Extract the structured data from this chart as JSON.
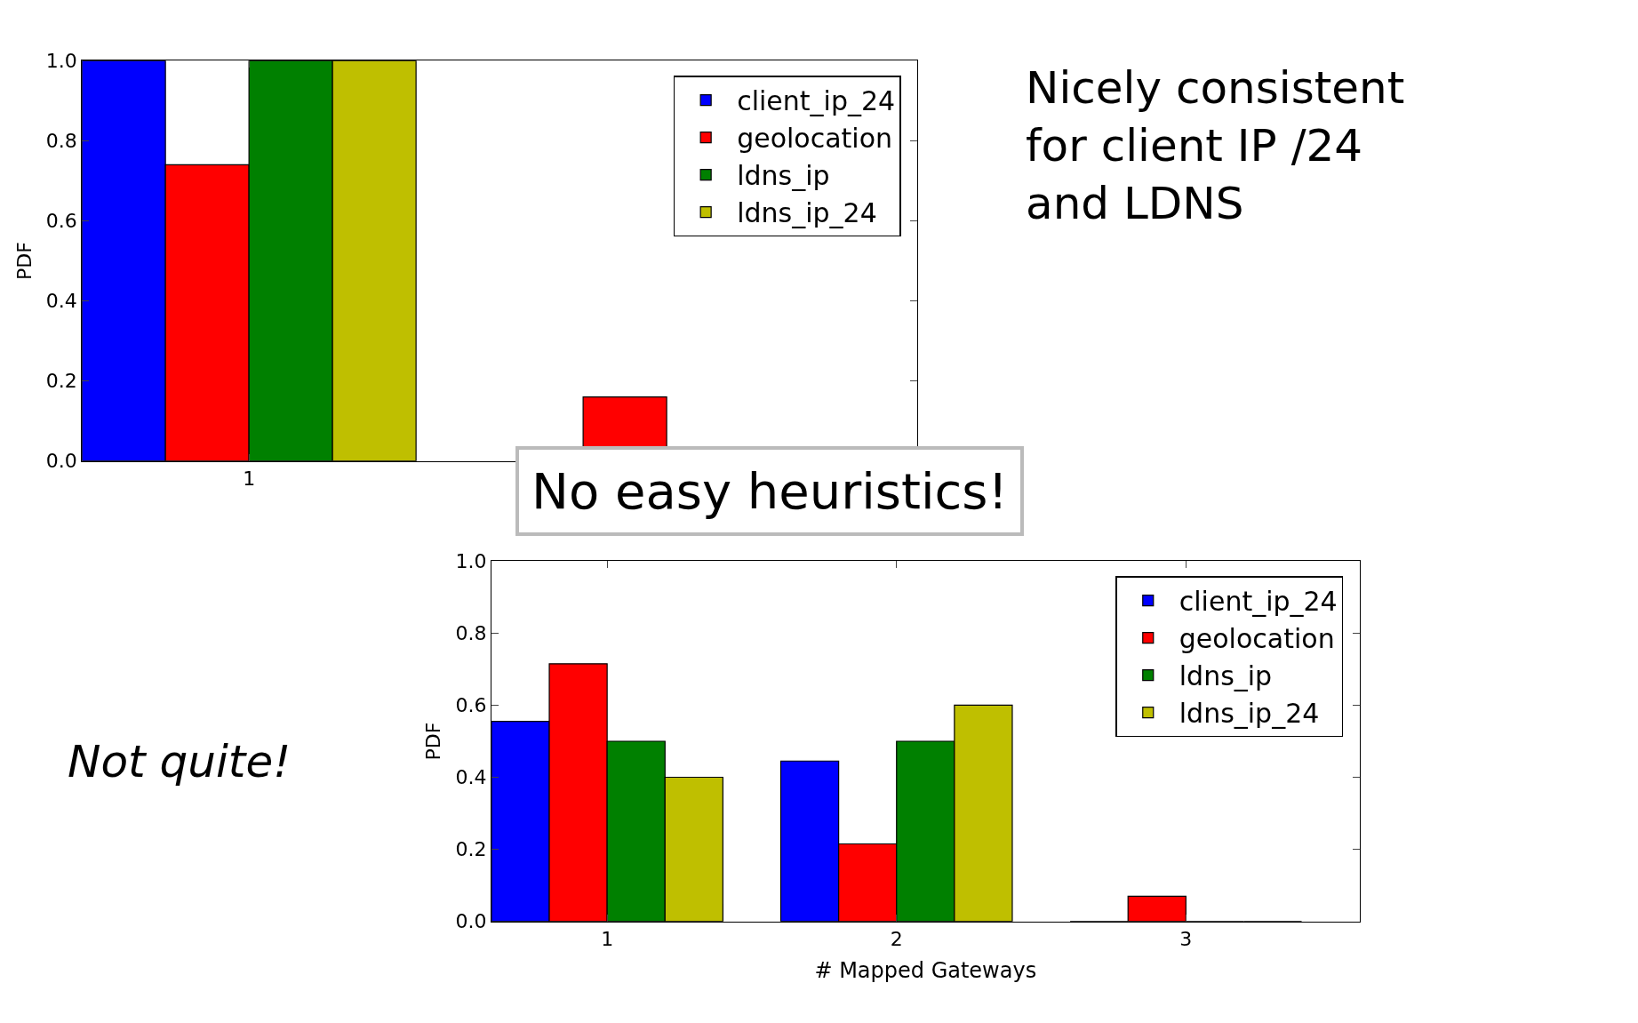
{
  "chart_data": [
    {
      "type": "bar",
      "ylabel": "PDF",
      "categories": [
        "1",
        null
      ],
      "legend": "top right",
      "ylim": [
        0,
        1
      ],
      "yticks": [
        {
          "value": 0,
          "label": "0.0"
        },
        {
          "value": 0.2,
          "label": "0.2"
        },
        {
          "value": 0.4,
          "label": "0.4"
        },
        {
          "value": 0.6,
          "label": "0.6"
        },
        {
          "value": 0.8,
          "label": "0.8"
        },
        {
          "value": 1,
          "label": "1.0"
        }
      ],
      "series": [
        {
          "name": "client_ip_24",
          "color": "#0000ff",
          "values": [
            1.0,
            null
          ]
        },
        {
          "name": "geolocation",
          "color": "#ff0000",
          "values": [
            0.74,
            0.16
          ]
        },
        {
          "name": "ldns_ip",
          "color": "#008000",
          "values": [
            1.0,
            null
          ]
        },
        {
          "name": "ldns_ip_24",
          "color": "#bfbf00",
          "values": [
            1.0,
            null
          ]
        }
      ],
      "annotations": [
        "Nicely consistent\nfor client IP /24\nand LDNS"
      ]
    },
    {
      "type": "bar",
      "ylabel": "PDF",
      "xlabel": "# Mapped Gateways",
      "categories": [
        "1",
        "2",
        "3"
      ],
      "legend": "top right",
      "ylim": [
        0,
        1
      ],
      "yticks": [
        {
          "value": 0,
          "label": "0.0"
        },
        {
          "value": 0.2,
          "label": "0.2"
        },
        {
          "value": 0.4,
          "label": "0.4"
        },
        {
          "value": 0.6,
          "label": "0.6"
        },
        {
          "value": 0.8,
          "label": "0.8"
        },
        {
          "value": 1,
          "label": "1.0"
        }
      ],
      "series": [
        {
          "name": "client_ip_24",
          "color": "#0000ff",
          "values": [
            0.555,
            0.445,
            0
          ]
        },
        {
          "name": "geolocation",
          "color": "#ff0000",
          "values": [
            0.715,
            0.215,
            0.07
          ]
        },
        {
          "name": "ldns_ip",
          "color": "#008000",
          "values": [
            0.5,
            0.5,
            0
          ]
        },
        {
          "name": "ldns_ip_24",
          "color": "#bfbf00",
          "values": [
            0.4,
            0.6,
            0
          ]
        }
      ],
      "annotations": [
        "No easy heuristics!",
        "Not quite!"
      ]
    }
  ]
}
